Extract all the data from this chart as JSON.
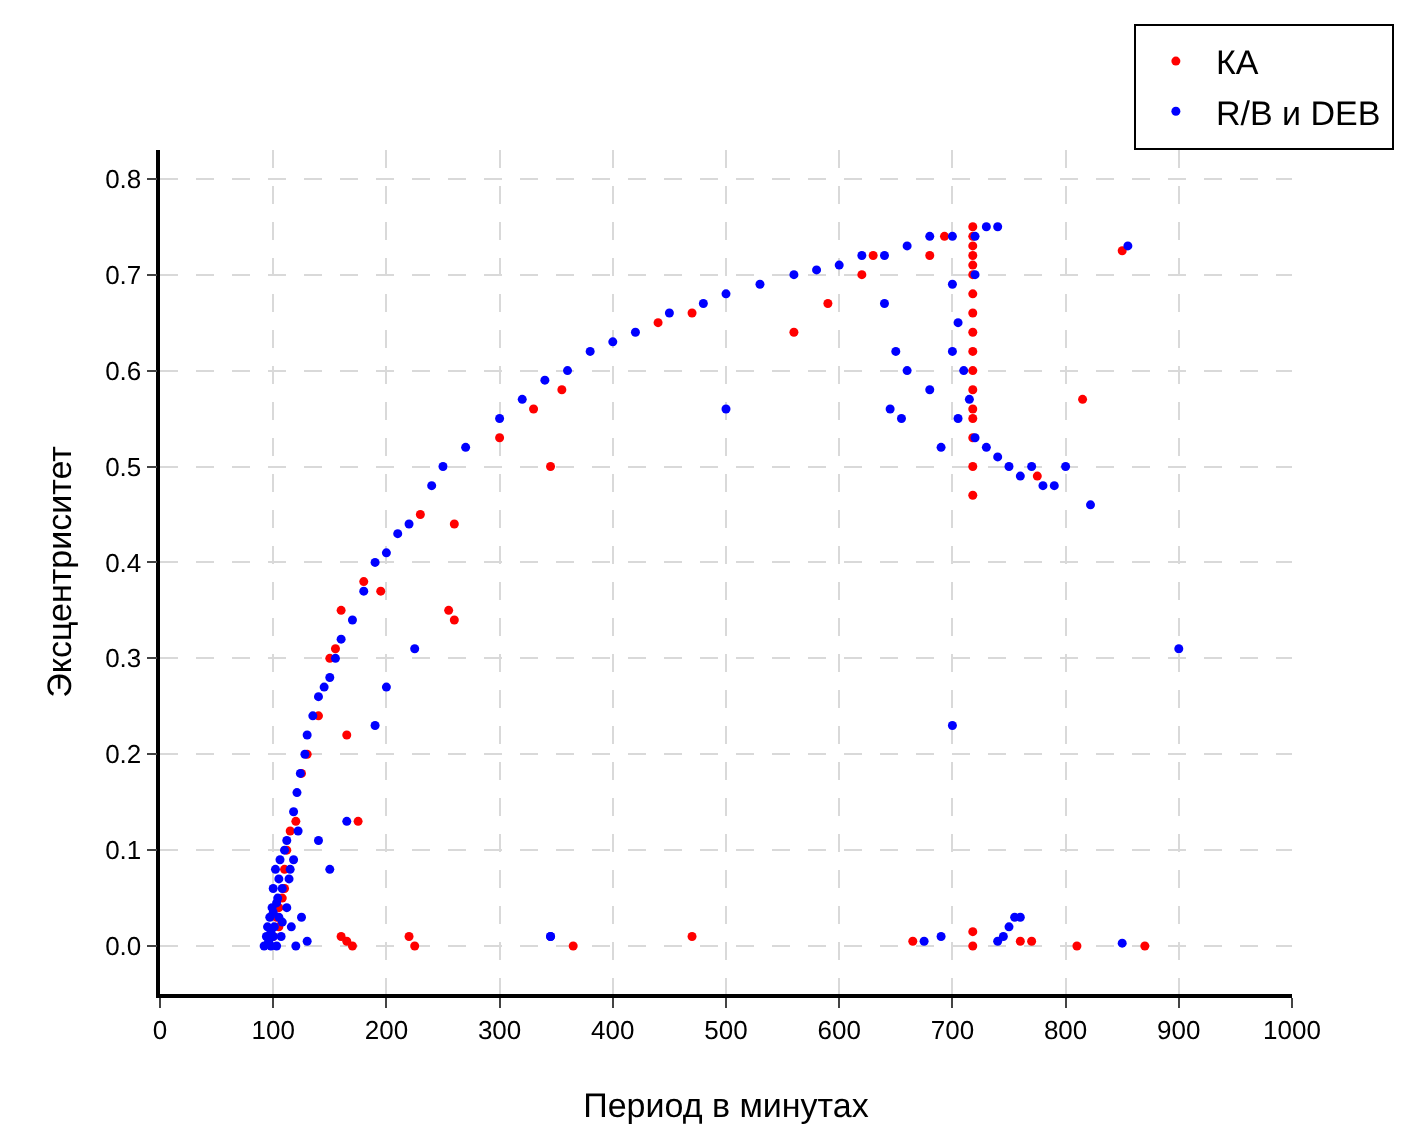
{
  "chart_data": {
    "type": "scatter",
    "xlabel": "Период в минутах",
    "ylabel": "Эксцентриситет",
    "xlim": [
      0,
      1000
    ],
    "ylim": [
      -0.05,
      0.83
    ],
    "xticks": [
      0,
      100,
      200,
      300,
      400,
      500,
      600,
      700,
      800,
      900,
      1000
    ],
    "yticks": [
      {
        "value": 0,
        "label": "0.0"
      },
      0.1,
      0.2,
      0.3,
      0.4,
      0.5,
      0.6,
      0.7,
      0.8
    ],
    "grid": true,
    "legend": "top right",
    "marker": "circle",
    "series": [
      {
        "name": "КА",
        "color": "#ff0000",
        "x": [
          100,
          103,
          105,
          108,
          110,
          112,
          115,
          120,
          125,
          130,
          140,
          150,
          155,
          160,
          165,
          175,
          180,
          195,
          230,
          255,
          260,
          260,
          300,
          330,
          345,
          355,
          440,
          470,
          560,
          590,
          620,
          630,
          680,
          693,
          718,
          718,
          718,
          718,
          718,
          718,
          718,
          718,
          718,
          718,
          718,
          718,
          718,
          718,
          718,
          718,
          718,
          775,
          815,
          850,
          160,
          165,
          170,
          220,
          225,
          365,
          470,
          665,
          718,
          718,
          760,
          770,
          810,
          870,
          105,
          110
        ],
        "values": [
          0.01,
          0.03,
          0.02,
          0.05,
          0.08,
          0.1,
          0.12,
          0.13,
          0.18,
          0.2,
          0.24,
          0.3,
          0.31,
          0.35,
          0.22,
          0.13,
          0.38,
          0.37,
          0.45,
          0.35,
          0.34,
          0.44,
          0.53,
          0.56,
          0.5,
          0.58,
          0.65,
          0.66,
          0.64,
          0.67,
          0.7,
          0.72,
          0.72,
          0.74,
          0.75,
          0.74,
          0.73,
          0.72,
          0.71,
          0.7,
          0.68,
          0.66,
          0.64,
          0.62,
          0.6,
          0.58,
          0.56,
          0.55,
          0.53,
          0.5,
          0.47,
          0.49,
          0.57,
          0.725,
          0.01,
          0.005,
          0,
          0.01,
          0,
          0,
          0.01,
          0.005,
          0.015,
          0,
          0.005,
          0.005,
          0,
          0,
          0.04,
          0.06
        ]
      },
      {
        "name": "R/B и DEB",
        "color": "#0000ff",
        "x": [
          92,
          94,
          95,
          96,
          97,
          98,
          99,
          100,
          100,
          101,
          102,
          103,
          104,
          105,
          106,
          107,
          108,
          110,
          112,
          114,
          116,
          118,
          120,
          122,
          125,
          98,
          100,
          103,
          105,
          108,
          112,
          115,
          118,
          121,
          124,
          128,
          130,
          135,
          140,
          145,
          150,
          155,
          160,
          170,
          180,
          190,
          200,
          210,
          220,
          240,
          250,
          270,
          300,
          320,
          340,
          360,
          380,
          400,
          420,
          450,
          480,
          500,
          530,
          560,
          580,
          600,
          620,
          640,
          660,
          680,
          700,
          720,
          730,
          740,
          225,
          190,
          165,
          345,
          500,
          640,
          650,
          660,
          680,
          690,
          700,
          705,
          710,
          715,
          720,
          730,
          740,
          750,
          760,
          770,
          780,
          790,
          800,
          720,
          700,
          705,
          645,
          655,
          700,
          900,
          822,
          855,
          345,
          675,
          690,
          740,
          745,
          750,
          755,
          760,
          850,
          150,
          140,
          200,
          130
        ],
        "values": [
          0,
          0.01,
          0.02,
          0.005,
          0.03,
          0,
          0.04,
          0.01,
          0.06,
          0.02,
          0.08,
          0,
          0.05,
          0.03,
          0.09,
          0.01,
          0.06,
          0.1,
          0.04,
          0.07,
          0.02,
          0.09,
          0,
          0.12,
          0.03,
          0.015,
          0.035,
          0.045,
          0.07,
          0.025,
          0.11,
          0.08,
          0.14,
          0.16,
          0.18,
          0.2,
          0.22,
          0.24,
          0.26,
          0.27,
          0.28,
          0.3,
          0.32,
          0.34,
          0.37,
          0.4,
          0.41,
          0.43,
          0.44,
          0.48,
          0.5,
          0.52,
          0.55,
          0.57,
          0.59,
          0.6,
          0.62,
          0.63,
          0.64,
          0.66,
          0.67,
          0.68,
          0.69,
          0.7,
          0.705,
          0.71,
          0.72,
          0.72,
          0.73,
          0.74,
          0.74,
          0.74,
          0.75,
          0.75,
          0.31,
          0.23,
          0.13,
          0.01,
          0.56,
          0.67,
          0.62,
          0.6,
          0.58,
          0.52,
          0.62,
          0.55,
          0.6,
          0.57,
          0.53,
          0.52,
          0.51,
          0.5,
          0.49,
          0.5,
          0.48,
          0.48,
          0.5,
          0.7,
          0.69,
          0.65,
          0.56,
          0.55,
          0.23,
          0.31,
          0.46,
          0.73,
          0.01,
          0.005,
          0.01,
          0.005,
          0.01,
          0.02,
          0.03,
          0.03,
          0.003,
          0.08,
          0.11,
          0.27,
          0.005
        ]
      }
    ]
  }
}
